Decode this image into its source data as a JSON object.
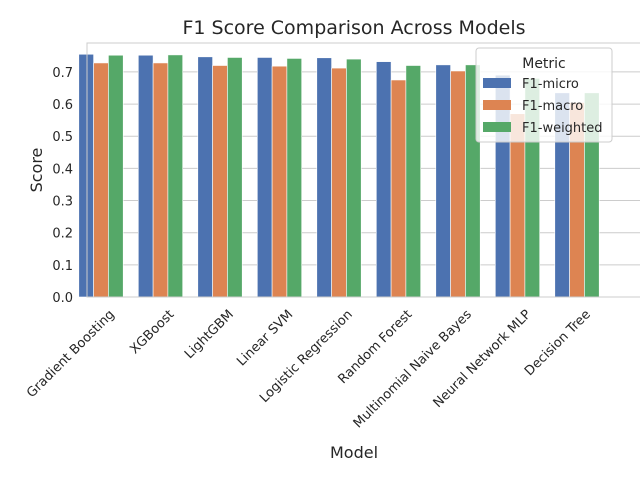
{
  "chart_data": {
    "type": "bar",
    "title": "F1 Score Comparison Across Models",
    "xlabel": "Model",
    "ylabel": "Score",
    "ylim": [
      0,
      0.79
    ],
    "yticks": [
      "0.0",
      "0.1",
      "0.2",
      "0.3",
      "0.4",
      "0.5",
      "0.6",
      "0.7"
    ],
    "grid": "horizontal",
    "categories": [
      "Gradient Boosting",
      "XGBoost",
      "LightGBM",
      "Linear SVM",
      "Logistic Regression",
      "Random Forest",
      "Multinomial Naive Bayes",
      "Neural Network MLP",
      "Decision Tree"
    ],
    "series": [
      {
        "name": "F1-micro",
        "color": "#4c72b0",
        "values": [
          0.755,
          0.752,
          0.747,
          0.745,
          0.744,
          0.732,
          0.722,
          0.69,
          0.635
        ]
      },
      {
        "name": "F1-macro",
        "color": "#dd8452",
        "values": [
          0.728,
          0.728,
          0.72,
          0.718,
          0.712,
          0.675,
          0.703,
          0.57,
          0.605
        ]
      },
      {
        "name": "F1-weighted",
        "color": "#55a868",
        "values": [
          0.752,
          0.753,
          0.745,
          0.742,
          0.74,
          0.72,
          0.722,
          0.68,
          0.635
        ]
      }
    ],
    "legend": {
      "title": "Metric",
      "position": "top-right"
    }
  }
}
